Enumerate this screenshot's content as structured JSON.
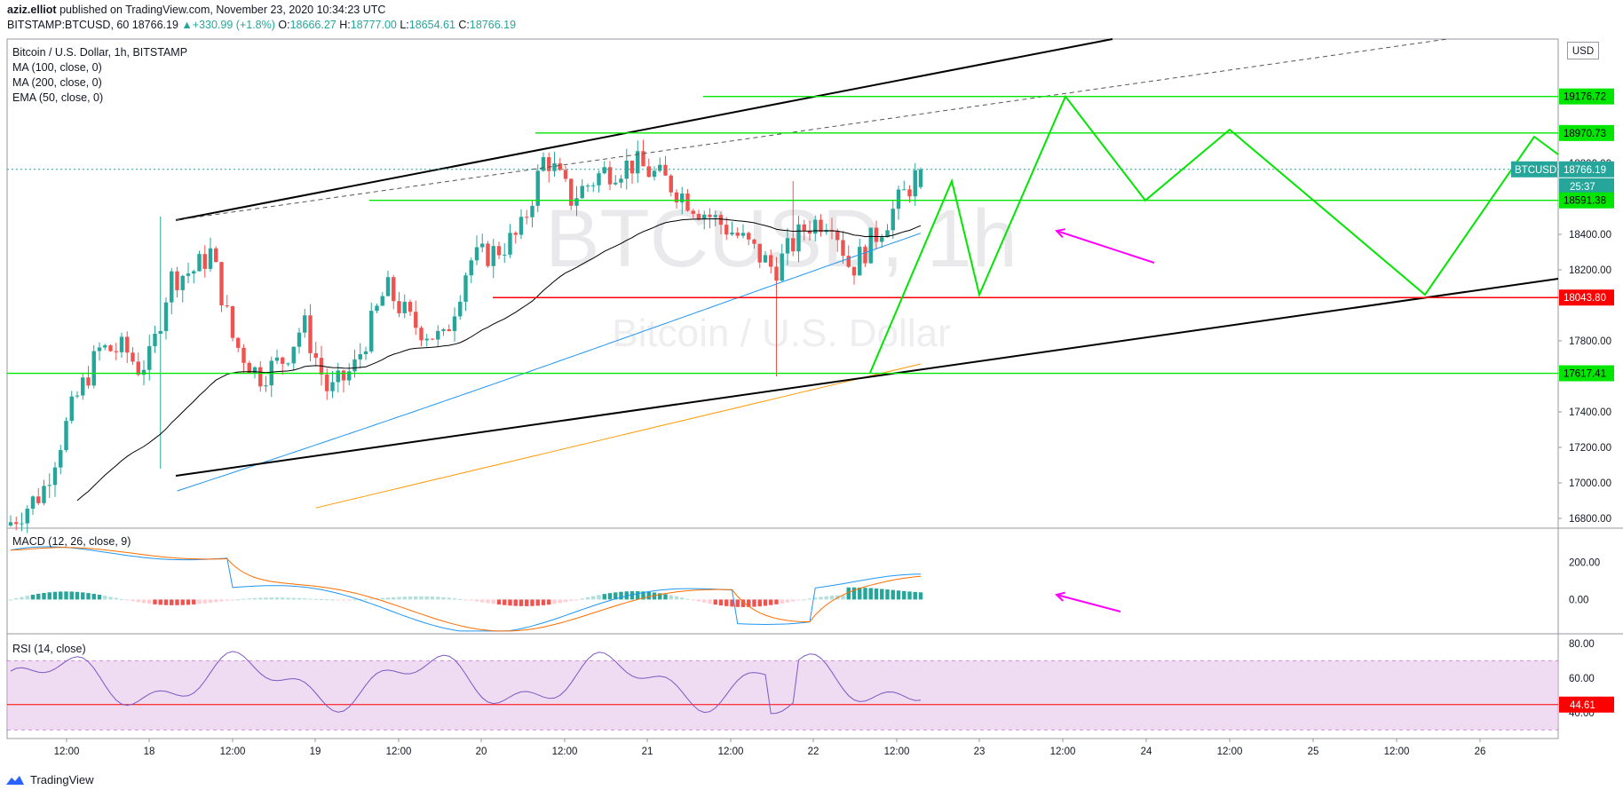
{
  "header": {
    "publisher": "aziz.elliot",
    "published_text": "published on TradingView.com, November 23, 2020 10:34:23 UTC",
    "symbol_line": "BITSTAMP:BTCUSD, 60",
    "price": "18766.19",
    "change": "+330.99 (+1.8%)",
    "o_label": "O:",
    "o_value": "18666.27",
    "h_label": "H:",
    "h_value": "18777.00",
    "l_label": "L:",
    "l_value": "18654.61",
    "c_label": "C:",
    "c_value": "18766.19"
  },
  "legend": {
    "title": "Bitcoin / U.S. Dollar, 1h, BITSTAMP",
    "ma100": "MA (100, close, 0)",
    "ma200": "MA (200, close, 0)",
    "ema50": "EMA (50, close, 0)",
    "macd": "MACD (12, 26, close, 9)",
    "rsi": "RSI (14, close)"
  },
  "watermark": {
    "symbol": "BTCUSD, 1h",
    "name": "Bitcoin / U.S. Dollar"
  },
  "currency_button": "USD",
  "footer": {
    "brand": "TradingView"
  },
  "colors": {
    "up": "#26a69a",
    "down": "#ef5350",
    "ma100": "#2962ff",
    "ma200": "#ff9800",
    "ema50": "#000000",
    "green_line": "#00e600",
    "red_line": "#ff0000",
    "arrow": "#ff00ff",
    "rsi_band": "#e1bee7"
  },
  "chart_data": [
    {
      "type": "candlestick",
      "panel": "price",
      "ylim": [
        16750,
        19500
      ],
      "y_ticks": [
        16800,
        17000,
        17200,
        17400,
        17600,
        17800,
        18000,
        18200,
        18400,
        18600,
        18800,
        19000,
        19200,
        19400
      ],
      "x_ticks": [
        "12:00",
        "18",
        "12:00",
        "19",
        "12:00",
        "20",
        "12:00",
        "21",
        "12:00",
        "22",
        "12:00",
        "23",
        "12:00",
        "24",
        "12:00",
        "25",
        "12:00",
        "26"
      ],
      "price_labels": [
        {
          "name": "level",
          "value": "19176.72",
          "color": "#00e600"
        },
        {
          "name": "level",
          "value": "18970.73",
          "color": "#00e600"
        },
        {
          "name": "BTCUSD",
          "value": "18766.19",
          "color": "#26a69a"
        },
        {
          "name": "countdown",
          "value": "25:37",
          "color": "#26a69a"
        },
        {
          "name": "level",
          "value": "18591.38",
          "color": "#00e600"
        },
        {
          "name": "level",
          "value": "18043.80",
          "color": "#ff0000"
        },
        {
          "name": "level",
          "value": "17617.41",
          "color": "#00e600"
        }
      ],
      "visible_tick_labels": [
        "18800.00",
        "18400.00",
        "18200.00",
        "17800.00",
        "17400.00",
        "17200.00",
        "17000.00",
        "16800.00"
      ],
      "horizontal_levels": [
        19176.72,
        18970.73,
        18591.38,
        18043.8,
        17617.41
      ],
      "last_price": 18766.19
    },
    {
      "type": "histogram+line",
      "panel": "MACD",
      "ylim": [
        -180,
        380
      ],
      "y_ticks": [
        "200.00",
        "0.00"
      ]
    },
    {
      "type": "line",
      "panel": "RSI",
      "ylim": [
        25,
        85
      ],
      "y_ticks": [
        "80.00",
        "60.00",
        "40.00"
      ],
      "band": [
        30,
        70
      ],
      "last_label": "44.61",
      "last_value": 44.61
    }
  ]
}
